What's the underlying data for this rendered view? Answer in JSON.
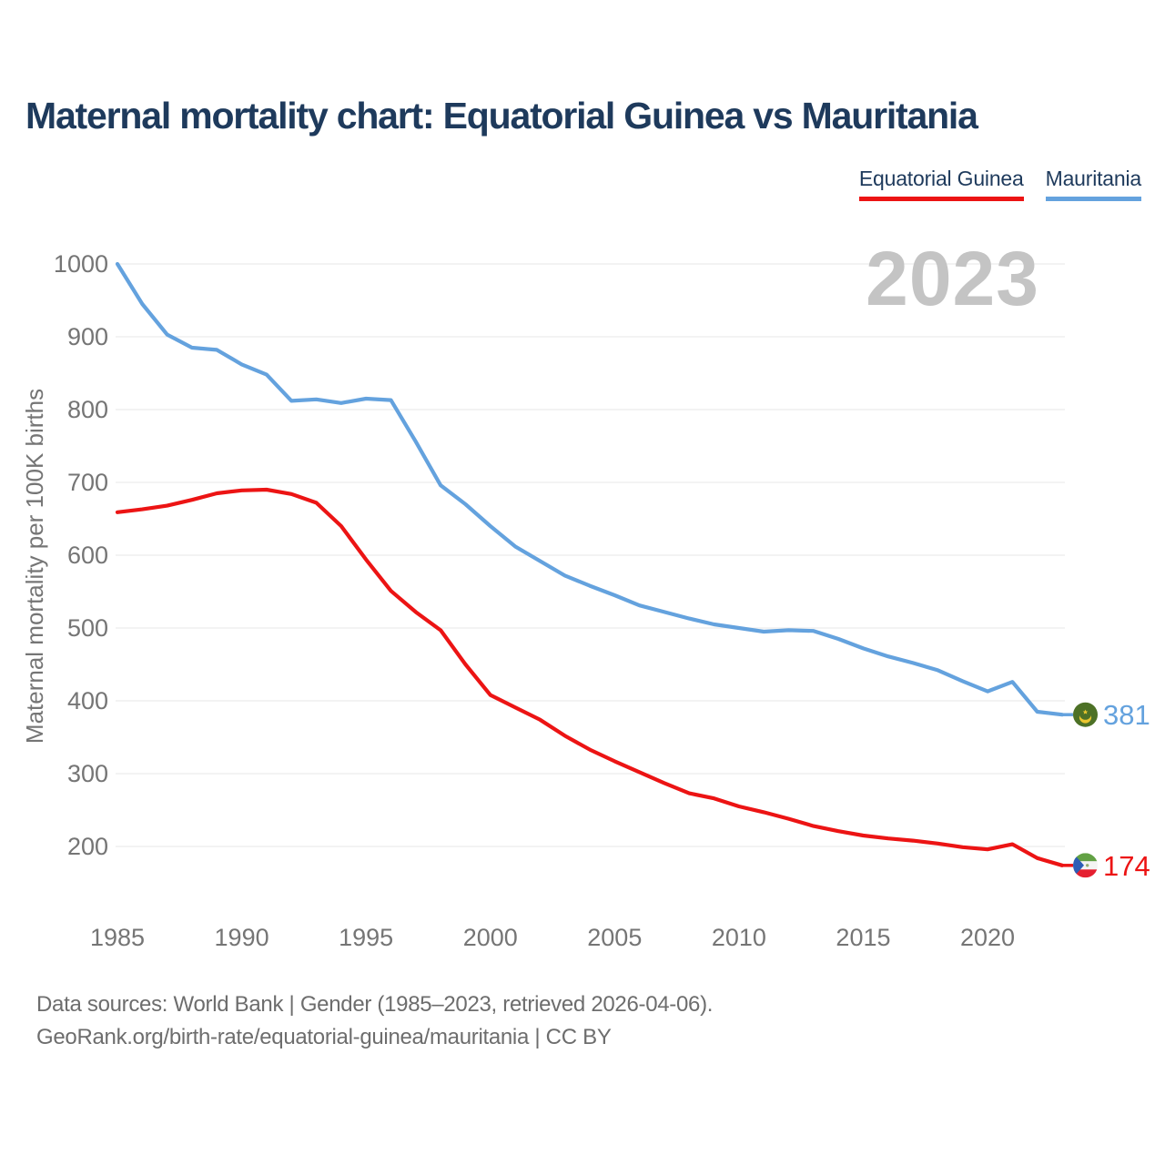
{
  "header": {
    "title": "Maternal mortality chart: Equatorial Guinea vs Mauritania"
  },
  "footer": {
    "line1": "Data sources: World Bank | Gender (1985–2023, retrieved 2026-04-06).",
    "line2": "GeoRank.org/birth-rate/equatorial-guinea/mauritania | CC BY"
  },
  "chart_data": {
    "type": "line",
    "title": "Maternal mortality chart: Equatorial Guinea vs Mauritania",
    "ylabel": "Maternal mortality per 100K births",
    "xlabel": "",
    "watermark": "2023",
    "grid": "horizontal",
    "legend_position": "top-right",
    "ylim": [
      140,
      1020
    ],
    "x_ticks": [
      1985,
      1990,
      1995,
      2000,
      2005,
      2010,
      2015,
      2020
    ],
    "y_ticks": [
      1000,
      900,
      800,
      700,
      600,
      500,
      400,
      300,
      200
    ],
    "x": [
      1985,
      1986,
      1987,
      1988,
      1989,
      1990,
      1991,
      1992,
      1993,
      1994,
      1995,
      1996,
      1997,
      1998,
      1999,
      2000,
      2001,
      2002,
      2003,
      2004,
      2005,
      2006,
      2007,
      2008,
      2009,
      2010,
      2011,
      2012,
      2013,
      2014,
      2015,
      2016,
      2017,
      2018,
      2019,
      2020,
      2021,
      2022,
      2023
    ],
    "series": [
      {
        "name": "Equatorial Guinea",
        "color": "#ec1414",
        "end_label": "174",
        "flag": "equatorial-guinea",
        "values": [
          659,
          663,
          668,
          676,
          685,
          689,
          690,
          684,
          672,
          640,
          594,
          551,
          522,
          497,
          450,
          408,
          391,
          374,
          352,
          333,
          317,
          302,
          287,
          273,
          266,
          255,
          247,
          238,
          228,
          221,
          215,
          211,
          208,
          204,
          199,
          196,
          203,
          184,
          174
        ]
      },
      {
        "name": "Mauritania",
        "color": "#64a2de",
        "end_label": "381",
        "flag": "mauritania",
        "values": [
          1000,
          945,
          903,
          885,
          882,
          862,
          848,
          812,
          814,
          809,
          815,
          813,
          756,
          696,
          670,
          640,
          612,
          592,
          572,
          558,
          545,
          531,
          522,
          513,
          505,
          500,
          495,
          497,
          496,
          485,
          472,
          461,
          452,
          442,
          427,
          413,
          426,
          385,
          381
        ]
      }
    ]
  }
}
